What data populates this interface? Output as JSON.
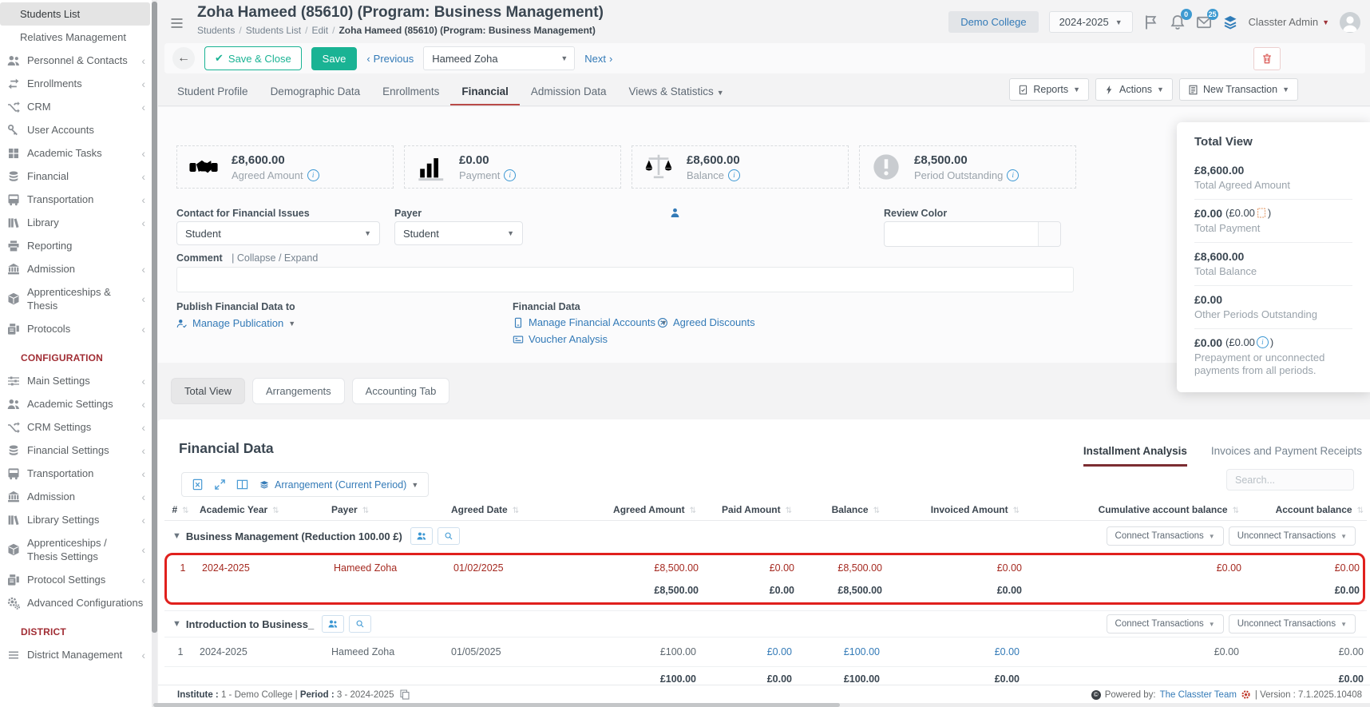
{
  "topbar": {
    "institute_badge": "Demo College",
    "year": "2024-2025",
    "notif_count": "0",
    "mail_count": "25",
    "user": "Classter Admin"
  },
  "header": {
    "title": "Zoha Hameed (85610) (Program: Business Management)",
    "crumbs": [
      "Students",
      "Students List",
      "Edit",
      "Zoha Hameed (85610) (Program: Business Management)"
    ]
  },
  "toolbar": {
    "save_close": "Save & Close",
    "save": "Save",
    "previous": "Previous",
    "student": "Hameed Zoha",
    "next": "Next"
  },
  "tabs": {
    "items": [
      "Student Profile",
      "Demographic Data",
      "Enrollments",
      "Financial",
      "Admission Data",
      "Views & Statistics"
    ],
    "active": "Financial"
  },
  "actions": {
    "reports": "Reports",
    "actions": "Actions",
    "new_transaction": "New Transaction"
  },
  "cards": [
    {
      "value": "£8,600.00",
      "label": "Agreed Amount",
      "icon": "handshake-icon"
    },
    {
      "value": "£0.00",
      "label": "Payment",
      "icon": "bar-chart-icon"
    },
    {
      "value": "£8,600.00",
      "label": "Balance",
      "icon": "scales-icon"
    },
    {
      "value": "£8,500.00",
      "label": "Period Outstanding",
      "icon": "exclamation-icon"
    }
  ],
  "form": {
    "contact_label": "Contact for Financial Issues",
    "contact_value": "Student",
    "payer_label": "Payer",
    "payer_value": "Student",
    "review_label": "Review Color",
    "comment_label": "Comment",
    "comment_toggle": "| Collapse / Expand",
    "publish_label": "Publish Financial Data to",
    "manage_publication": "Manage Publication",
    "financial_data_label": "Financial Data",
    "manage_accounts": "Manage Financial Accounts",
    "agreed_discounts": "Agreed Discounts",
    "voucher_analysis": "Voucher Analysis"
  },
  "total_view": {
    "title": "Total View",
    "rows": [
      {
        "value": "£8,600.00",
        "sub": "",
        "sub_close": "",
        "label": "Total Agreed Amount"
      },
      {
        "value": "£0.00",
        "sub": "(£0.00",
        "sub_close": ")",
        "label": "Total Payment"
      },
      {
        "value": "£8,600.00",
        "sub": "",
        "sub_close": "",
        "label": "Total Balance"
      },
      {
        "value": "£0.00",
        "sub": "",
        "sub_close": "",
        "label": "Other Periods Outstanding"
      },
      {
        "value": "£0.00",
        "sub": "(£0.00",
        "sub_close": ")",
        "label": "Prepayment or unconnected payments from all periods."
      }
    ]
  },
  "view_tabs": [
    "Total View",
    "Arrangements",
    "Accounting Tab"
  ],
  "fin": {
    "title": "Financial Data",
    "tab_installments": "Installment Analysis",
    "tab_invoices": "Invoices and Payment Receipts",
    "arrangement": "Arrangement (Current Period)",
    "search_placeholder": "Search...",
    "connect": "Connect Transactions",
    "unconnect": "Unconnect Transactions",
    "columns": [
      "#",
      "Academic Year",
      "Payer",
      "Agreed Date",
      "Agreed Amount",
      "Paid Amount",
      "Balance",
      "Invoiced Amount",
      "Cumulative account balance",
      "Account balance"
    ],
    "groups": [
      {
        "name": "Business Management (Reduction 100.00 £)",
        "row": {
          "num": "1",
          "year": "2024-2025",
          "payer": "Hameed Zoha",
          "date": "01/02/2025",
          "agreed": "£8,500.00",
          "paid": "£0.00",
          "balance": "£8,500.00",
          "invoiced": "£0.00",
          "cumulative": "£0.00",
          "account": "£0.00"
        },
        "totals": {
          "agreed": "£8,500.00",
          "paid": "£0.00",
          "balance": "£8,500.00",
          "invoiced": "£0.00",
          "account": "£0.00"
        }
      },
      {
        "name": "Introduction to Business_",
        "row": {
          "num": "1",
          "year": "2024-2025",
          "payer": "Hameed Zoha",
          "date": "01/05/2025",
          "agreed": "£100.00",
          "paid": "£0.00",
          "balance": "£100.00",
          "invoiced": "£0.00",
          "cumulative": "£0.00",
          "account": "£0.00"
        },
        "totals": {
          "agreed": "£100.00",
          "paid": "£0.00",
          "balance": "£100.00",
          "invoiced": "£0.00",
          "account": "£0.00"
        }
      }
    ]
  },
  "footer": {
    "institute_label": "Institute :",
    "institute_value": "1 - Demo College",
    "sep": "|",
    "period_label": "Period :",
    "period_value": "3 - 2024-2025",
    "powered": "Powered by:",
    "powered_link": "The Classter Team",
    "version": "| Version : 7.1.2025.10408"
  },
  "sidebar": {
    "sections": [
      {
        "heading": "",
        "items": [
          {
            "label": "Students List",
            "icon": "",
            "chevron": false,
            "active": true
          },
          {
            "label": "Relatives Management",
            "icon": "",
            "chevron": false
          },
          {
            "label": "Personnel & Contacts",
            "icon": "people-icon",
            "chevron": true
          },
          {
            "label": "Enrollments",
            "icon": "transfer-icon",
            "chevron": true
          },
          {
            "label": "CRM",
            "icon": "shuffle-icon",
            "chevron": true
          },
          {
            "label": "User Accounts",
            "icon": "key-icon",
            "chevron": false
          },
          {
            "label": "Academic Tasks",
            "icon": "grid-icon",
            "chevron": true
          },
          {
            "label": "Financial",
            "icon": "coins-icon",
            "chevron": true
          },
          {
            "label": "Transportation",
            "icon": "bus-icon",
            "chevron": true
          },
          {
            "label": "Library",
            "icon": "books-icon",
            "chevron": true
          },
          {
            "label": "Reporting",
            "icon": "printer-icon",
            "chevron": false
          },
          {
            "label": "Admission",
            "icon": "bank-icon",
            "chevron": true
          },
          {
            "label": "Apprenticeships & Thesis",
            "icon": "box-icon",
            "chevron": true
          },
          {
            "label": "Protocols",
            "icon": "fax-icon",
            "chevron": true
          }
        ]
      },
      {
        "heading": "CONFIGURATION",
        "items": [
          {
            "label": "Main Settings",
            "icon": "sliders-icon",
            "chevron": true
          },
          {
            "label": "Academic Settings",
            "icon": "people-icon",
            "chevron": true
          },
          {
            "label": "CRM Settings",
            "icon": "shuffle-icon",
            "chevron": true
          },
          {
            "label": "Financial Settings",
            "icon": "coins-icon",
            "chevron": true
          },
          {
            "label": "Transportation",
            "icon": "bus-icon",
            "chevron": true
          },
          {
            "label": "Admission",
            "icon": "bank-icon",
            "chevron": true
          },
          {
            "label": "Library Settings",
            "icon": "books-icon",
            "chevron": true
          },
          {
            "label": "Apprenticeships / Thesis Settings",
            "icon": "box-icon",
            "chevron": true
          },
          {
            "label": "Protocol Settings",
            "icon": "fax-icon",
            "chevron": true
          },
          {
            "label": "Advanced Configurations",
            "icon": "gears-icon",
            "chevron": false
          }
        ]
      },
      {
        "heading": "DISTRICT",
        "items": [
          {
            "label": "District Management",
            "icon": "menu-icon",
            "chevron": true
          }
        ]
      }
    ]
  }
}
